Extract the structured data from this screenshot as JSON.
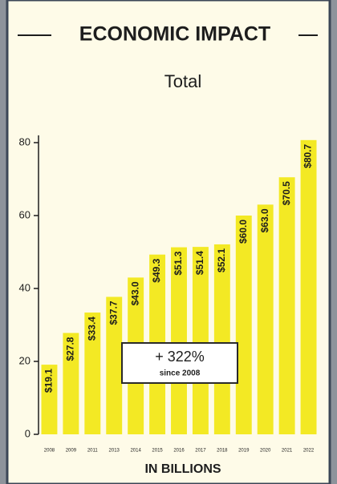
{
  "chart_data": {
    "type": "bar",
    "title": "ECONOMIC IMPACT",
    "subtitle": "Total",
    "x_label": "IN BILLIONS",
    "annotation": {
      "main": "+ 322%",
      "sub": "since 2008"
    },
    "categories": [
      "2008",
      "2009",
      "2011",
      "2013",
      "2014",
      "2015",
      "2016",
      "2017",
      "2018",
      "2019",
      "2020",
      "2021",
      "2022"
    ],
    "values": [
      19.1,
      27.8,
      33.4,
      37.7,
      43.0,
      49.3,
      51.3,
      51.4,
      52.1,
      60.0,
      63.0,
      70.5,
      80.7
    ],
    "value_labels": [
      "$19.1",
      "$27.8",
      "$33.4",
      "$37.7",
      "$43.0",
      "$49.3",
      "$51.3",
      "$51.4",
      "$52.1",
      "$60.0",
      "$63.0",
      "$70.5",
      "$80.7"
    ],
    "color": "#f3e924",
    "ylim": [
      0,
      82
    ],
    "yticks": [
      0,
      20,
      40,
      60,
      80
    ],
    "grid": false
  }
}
